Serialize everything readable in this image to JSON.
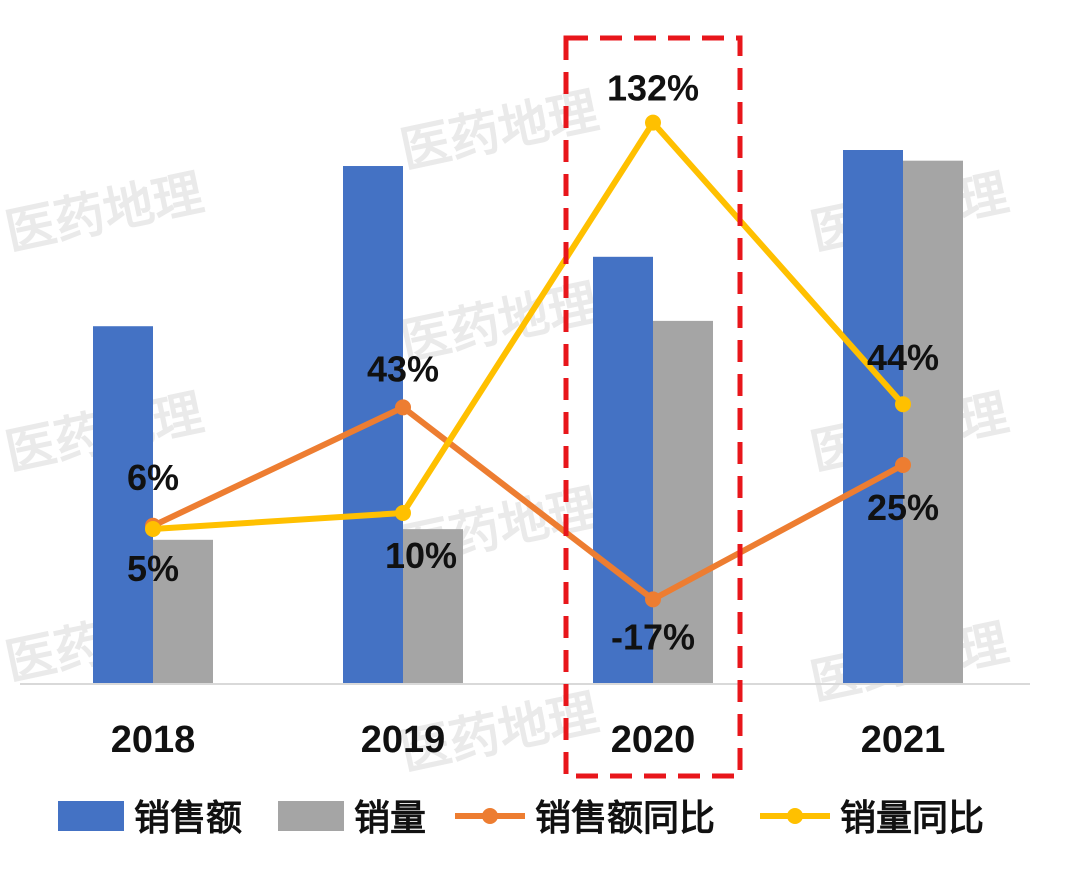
{
  "chart_data": {
    "type": "bar",
    "categories": [
      "2018",
      "2019",
      "2020",
      "2021"
    ],
    "title": "",
    "xlabel": "",
    "ylabel": "",
    "ylim": [
      0,
      100
    ],
    "grid": false,
    "legend_position": "bottom",
    "highlight_category": "2020",
    "highlight_color": "#e8161b",
    "watermark_text": "医药地理",
    "series": [
      {
        "name": "销售额",
        "kind": "bar",
        "color": "#4472c4",
        "values": [
          67,
          97,
          80,
          100
        ]
      },
      {
        "name": "销量",
        "kind": "bar",
        "color": "#a5a5a5",
        "values": [
          27,
          29,
          68,
          98
        ]
      },
      {
        "name": "销售额同比",
        "kind": "line",
        "color": "#ed7d31",
        "values": [
          6,
          43,
          -17,
          25
        ],
        "labels": [
          "6%",
          "43%",
          "-17%",
          "25%"
        ]
      },
      {
        "name": "销量同比",
        "kind": "line",
        "color": "#ffc000",
        "values": [
          5,
          10,
          132,
          44
        ],
        "labels": [
          "5%",
          "10%",
          "132%",
          "44%"
        ]
      }
    ]
  }
}
